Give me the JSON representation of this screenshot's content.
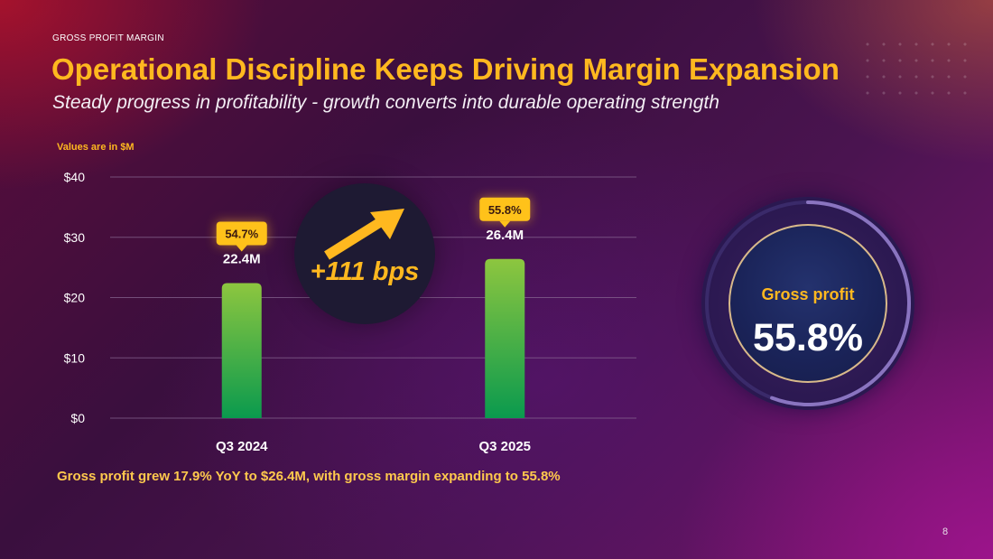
{
  "eyebrow": "GROSS PROFIT MARGIN",
  "title": "Operational Discipline Keeps Driving Margin Expansion",
  "subtitle": "Steady progress in profitability - growth converts into durable operating strength",
  "units_note": "Values are in $M",
  "footnote": "Gross profit grew 17.9% YoY to $26.4M, with gross margin expanding to 55.8%",
  "page_number": "8",
  "badge": {
    "text": "+111 bps"
  },
  "gauge": {
    "label": "Gross profit",
    "value": "55.8%",
    "fraction": 0.558
  },
  "colors": {
    "accent": "#ffb81f",
    "bar_top": "#8dc63f",
    "bar_bottom": "#0a9a4e",
    "grid": "#8a6a94"
  },
  "chart_data": {
    "type": "bar",
    "categories": [
      "Q3 2024",
      "Q3 2025"
    ],
    "values": [
      22.4,
      26.4
    ],
    "value_labels": [
      "22.4M",
      "26.4M"
    ],
    "margin_labels": [
      "54.7%",
      "55.8%"
    ],
    "y_ticks": [
      0,
      10,
      20,
      30,
      40
    ],
    "y_tick_labels": [
      "$0",
      "$10",
      "$20",
      "$30",
      "$40"
    ],
    "ylim": [
      0,
      40
    ],
    "ylabel": "Values are in $M",
    "title": ""
  }
}
